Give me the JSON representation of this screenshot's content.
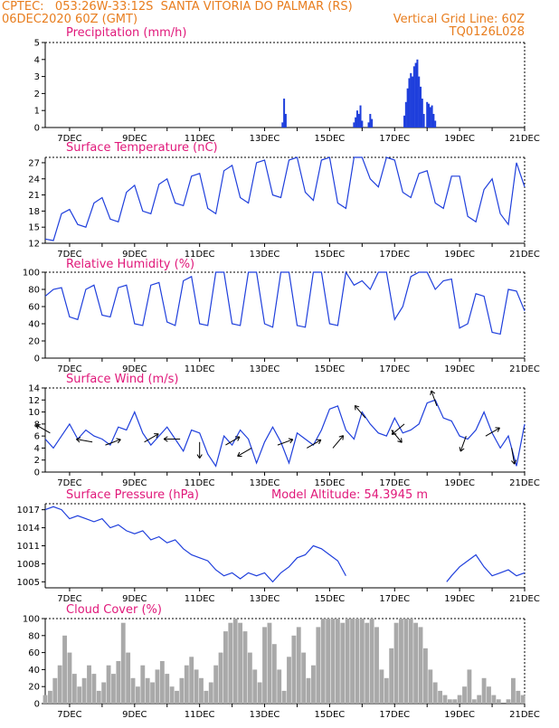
{
  "header": {
    "line1_left": "CPTEC:   053:26W-33:12S  SANTA VITORIA DO PALMAR (RS)",
    "line2_left": "06DEC2020 60Z (GMT)",
    "line2_right": "Vertical Grid Line: 60Z",
    "line3_right": "TQ0126L028"
  },
  "colors": {
    "header": "#e87d1e",
    "panel_title": "#e0187a",
    "series": "#1f3fdc",
    "cloud": "#a9a9a9",
    "axes": "#000000"
  },
  "x_axis": {
    "start_date": "06DEC 06Z",
    "end_date": "21DEC",
    "tick_labels": [
      "7DEC",
      "9DEC",
      "11DEC",
      "13DEC",
      "15DEC",
      "17DEC",
      "19DEC",
      "21DEC"
    ]
  },
  "chart_data": [
    {
      "id": "precip",
      "type": "bar",
      "title": "Precipitation (mm/h)",
      "ylim": [
        0,
        5
      ],
      "yticks": [
        "0",
        "1",
        "2",
        "3",
        "4",
        "5"
      ],
      "x_days": [
        13.55,
        13.6,
        13.65,
        15.75,
        15.8,
        15.85,
        15.9,
        15.95,
        16.0,
        16.2,
        16.25,
        16.3,
        17.3,
        17.35,
        17.4,
        17.45,
        17.5,
        17.55,
        17.6,
        17.65,
        17.7,
        17.75,
        17.8,
        17.85,
        17.9,
        18.0,
        18.05,
        18.1,
        18.15,
        18.2,
        18.25
      ],
      "values": [
        0.3,
        1.7,
        0.8,
        0.3,
        0.6,
        1.0,
        0.8,
        1.3,
        0.4,
        0.3,
        0.8,
        0.5,
        0.7,
        1.5,
        2.3,
        2.9,
        3.2,
        3.0,
        3.6,
        3.8,
        4.0,
        3.0,
        2.4,
        1.7,
        0.8,
        1.5,
        1.4,
        1.2,
        1.3,
        0.8,
        0.4
      ]
    },
    {
      "id": "temp",
      "type": "line",
      "title": "Surface Temperature (nC)",
      "ylim": [
        12,
        28
      ],
      "yticks": [
        "12",
        "15",
        "18",
        "21",
        "24",
        "27"
      ],
      "x_days": [
        6.25,
        6.5,
        6.75,
        7.0,
        7.25,
        7.5,
        7.75,
        8.0,
        8.25,
        8.5,
        8.75,
        9.0,
        9.25,
        9.5,
        9.75,
        10.0,
        10.25,
        10.5,
        10.75,
        11.0,
        11.25,
        11.5,
        11.75,
        12.0,
        12.25,
        12.5,
        12.75,
        13.0,
        13.25,
        13.5,
        13.75,
        14.0,
        14.25,
        14.5,
        14.75,
        15.0,
        15.25,
        15.5,
        15.75,
        16.0,
        16.25,
        16.5,
        16.75,
        17.0,
        17.25,
        17.5,
        17.75,
        18.0,
        18.25,
        18.5,
        18.75,
        19.0,
        19.25,
        19.5,
        19.75,
        20.0,
        20.25,
        20.5,
        20.75,
        21.0
      ],
      "values": [
        12.8,
        12.5,
        17.5,
        18.3,
        15.5,
        15.0,
        19.5,
        20.5,
        16.5,
        16.0,
        21.5,
        22.8,
        18.0,
        17.5,
        23.0,
        24.0,
        19.5,
        19.0,
        24.5,
        25.0,
        18.5,
        17.5,
        25.5,
        26.5,
        20.5,
        19.5,
        27.0,
        27.5,
        21.0,
        20.5,
        27.5,
        28.0,
        21.5,
        20.0,
        27.5,
        28.0,
        19.5,
        18.5,
        28.0,
        28.0,
        24.0,
        22.5,
        28.0,
        27.5,
        21.5,
        20.5,
        25.0,
        25.5,
        19.5,
        18.5,
        24.5,
        24.5,
        17.0,
        16.0,
        22.0,
        24.0,
        17.5,
        15.5,
        27.0,
        22.5
      ]
    },
    {
      "id": "rh",
      "type": "line",
      "title": "Relative Humidity (%)",
      "ylim": [
        0,
        100
      ],
      "yticks": [
        "0",
        "20",
        "40",
        "60",
        "80",
        "100"
      ],
      "x_days": [
        6.25,
        6.5,
        6.75,
        7.0,
        7.25,
        7.5,
        7.75,
        8.0,
        8.25,
        8.5,
        8.75,
        9.0,
        9.25,
        9.5,
        9.75,
        10.0,
        10.25,
        10.5,
        10.75,
        11.0,
        11.25,
        11.5,
        11.75,
        12.0,
        12.25,
        12.5,
        12.75,
        13.0,
        13.25,
        13.5,
        13.75,
        14.0,
        14.25,
        14.5,
        14.75,
        15.0,
        15.25,
        15.5,
        15.75,
        16.0,
        16.25,
        16.5,
        16.75,
        17.0,
        17.25,
        17.5,
        17.75,
        18.0,
        18.25,
        18.5,
        18.75,
        19.0,
        19.25,
        19.5,
        19.75,
        20.0,
        20.25,
        20.5,
        20.75,
        21.0
      ],
      "values": [
        72,
        80,
        82,
        48,
        45,
        80,
        85,
        50,
        48,
        82,
        85,
        40,
        38,
        85,
        88,
        42,
        38,
        90,
        95,
        40,
        38,
        100,
        100,
        40,
        38,
        100,
        100,
        40,
        36,
        100,
        100,
        38,
        36,
        100,
        100,
        40,
        38,
        100,
        85,
        90,
        80,
        100,
        100,
        45,
        60,
        95,
        100,
        100,
        80,
        90,
        92,
        35,
        40,
        75,
        72,
        30,
        28,
        80,
        78,
        55
      ]
    },
    {
      "id": "wind",
      "type": "line",
      "title": "Surface Wind (m/s)",
      "ylim": [
        0,
        14
      ],
      "yticks": [
        "0",
        "2",
        "4",
        "6",
        "8",
        "10",
        "12",
        "14"
      ],
      "x_days": [
        6.25,
        6.5,
        6.75,
        7.0,
        7.25,
        7.5,
        7.75,
        8.0,
        8.25,
        8.5,
        8.75,
        9.0,
        9.25,
        9.5,
        9.75,
        10.0,
        10.25,
        10.5,
        10.75,
        11.0,
        11.25,
        11.5,
        11.75,
        12.0,
        12.25,
        12.5,
        12.75,
        13.0,
        13.25,
        13.5,
        13.75,
        14.0,
        14.25,
        14.5,
        14.75,
        15.0,
        15.25,
        15.5,
        15.75,
        16.0,
        16.25,
        16.5,
        16.75,
        17.0,
        17.25,
        17.5,
        17.75,
        18.0,
        18.25,
        18.5,
        18.75,
        19.0,
        19.25,
        19.5,
        19.75,
        20.0,
        20.25,
        20.5,
        20.75,
        21.0
      ],
      "values": [
        5.5,
        4.0,
        6.0,
        8.0,
        5.5,
        7.0,
        6.0,
        5.5,
        4.5,
        7.5,
        7.0,
        10.0,
        6.5,
        4.5,
        6.0,
        7.5,
        5.5,
        3.5,
        7.0,
        6.5,
        3.0,
        1.0,
        6.0,
        4.5,
        7.0,
        5.5,
        1.5,
        5.0,
        7.5,
        5.0,
        1.5,
        6.5,
        5.5,
        4.5,
        7.0,
        10.5,
        11.0,
        7.0,
        5.5,
        10.0,
        8.0,
        6.5,
        6.0,
        9.0,
        6.5,
        7.0,
        8.0,
        11.5,
        12.0,
        9.0,
        8.5,
        6.0,
        5.5,
        7.0,
        10.0,
        6.5,
        4.0,
        6.0,
        1.0,
        8.0
      ],
      "arrows": [
        {
          "x_day": 6.4,
          "y": 6.5,
          "dir_deg": 300
        },
        {
          "x_day": 7.7,
          "y": 5.0,
          "dir_deg": 280
        },
        {
          "x_day": 8.1,
          "y": 4.5,
          "dir_deg": 70
        },
        {
          "x_day": 9.3,
          "y": 5.0,
          "dir_deg": 60
        },
        {
          "x_day": 10.4,
          "y": 5.5,
          "dir_deg": 270
        },
        {
          "x_day": 11.0,
          "y": 5.0,
          "dir_deg": 180
        },
        {
          "x_day": 11.8,
          "y": 4.5,
          "dir_deg": 60
        },
        {
          "x_day": 12.6,
          "y": 4.0,
          "dir_deg": 240
        },
        {
          "x_day": 13.4,
          "y": 4.5,
          "dir_deg": 70
        },
        {
          "x_day": 14.3,
          "y": 4.0,
          "dir_deg": 60
        },
        {
          "x_day": 15.1,
          "y": 4.0,
          "dir_deg": 40
        },
        {
          "x_day": 16.1,
          "y": 9.0,
          "dir_deg": 320
        },
        {
          "x_day": 16.9,
          "y": 7.0,
          "dir_deg": 140
        },
        {
          "x_day": 17.3,
          "y": 8.0,
          "dir_deg": 230
        },
        {
          "x_day": 18.3,
          "y": 11.0,
          "dir_deg": 340
        },
        {
          "x_day": 19.2,
          "y": 6.0,
          "dir_deg": 200
        },
        {
          "x_day": 19.8,
          "y": 6.0,
          "dir_deg": 60
        },
        {
          "x_day": 20.6,
          "y": 4.0,
          "dir_deg": 170
        }
      ]
    },
    {
      "id": "pressure",
      "type": "line",
      "title": "Surface Pressure (hPa)",
      "annotation": "Model Altitude: 54.3945 m",
      "ylim": [
        1004,
        1018
      ],
      "yticks": [
        "1005",
        "1008",
        "1011",
        "1014",
        "1017"
      ],
      "x_days": [
        6.25,
        6.5,
        6.75,
        7.0,
        7.25,
        7.5,
        7.75,
        8.0,
        8.25,
        8.5,
        8.75,
        9.0,
        9.25,
        9.5,
        9.75,
        10.0,
        10.25,
        10.5,
        10.75,
        11.0,
        11.25,
        11.5,
        11.75,
        12.0,
        12.25,
        12.5,
        12.75,
        13.0,
        13.25,
        13.5,
        13.75,
        14.0,
        14.25,
        14.5,
        14.75,
        15.0,
        15.25,
        15.5,
        null,
        18.6,
        18.75,
        19.0,
        19.25,
        19.5,
        19.75,
        20.0,
        20.25,
        20.5,
        20.75,
        21.0
      ],
      "values": [
        1017.0,
        1017.5,
        1017.0,
        1015.5,
        1016.0,
        1015.5,
        1015.0,
        1015.5,
        1014.0,
        1014.5,
        1013.5,
        1013.0,
        1013.5,
        1012.0,
        1012.5,
        1011.5,
        1012.0,
        1010.5,
        1009.5,
        1009.0,
        1008.5,
        1007.0,
        1006.0,
        1006.5,
        1005.5,
        1006.5,
        1006.0,
        1006.5,
        1005.0,
        1006.5,
        1007.5,
        1009.0,
        1009.5,
        1011.0,
        1010.5,
        1009.5,
        1008.5,
        1006.0,
        null,
        1005.0,
        1006.0,
        1007.5,
        1008.5,
        1009.5,
        1007.5,
        1006.0,
        1006.5,
        1007.0,
        1006.0,
        1006.5
      ]
    },
    {
      "id": "cloud",
      "type": "bar",
      "title": "Cloud Cover (%)",
      "ylim": [
        0,
        100
      ],
      "yticks": [
        "0",
        "20",
        "40",
        "60",
        "80",
        "100"
      ],
      "x_days": [
        6.25,
        6.4,
        6.55,
        6.7,
        6.85,
        7.0,
        7.15,
        7.3,
        7.45,
        7.6,
        7.75,
        7.9,
        8.05,
        8.2,
        8.35,
        8.5,
        8.65,
        8.8,
        8.95,
        9.1,
        9.25,
        9.4,
        9.55,
        9.7,
        9.85,
        10.0,
        10.15,
        10.3,
        10.45,
        10.6,
        10.75,
        10.9,
        11.05,
        11.2,
        11.35,
        11.5,
        11.65,
        11.8,
        11.95,
        12.1,
        12.25,
        12.4,
        12.55,
        12.7,
        12.85,
        13.0,
        13.15,
        13.3,
        13.45,
        13.6,
        13.75,
        13.9,
        14.05,
        14.2,
        14.35,
        14.5,
        14.65,
        14.8,
        14.95,
        15.1,
        15.25,
        15.4,
        15.55,
        15.7,
        15.85,
        16.0,
        16.15,
        16.3,
        16.45,
        16.6,
        16.75,
        16.9,
        17.05,
        17.2,
        17.35,
        17.5,
        17.65,
        17.8,
        17.95,
        18.1,
        18.25,
        18.4,
        18.55,
        18.7,
        18.85,
        19.0,
        19.15,
        19.3,
        19.45,
        19.6,
        19.75,
        19.9,
        20.05,
        20.2,
        20.35,
        20.5,
        20.65,
        20.8,
        20.95
      ],
      "values": [
        10,
        15,
        30,
        45,
        80,
        60,
        35,
        20,
        30,
        45,
        35,
        15,
        25,
        45,
        35,
        50,
        95,
        60,
        30,
        20,
        45,
        30,
        25,
        40,
        50,
        35,
        20,
        15,
        30,
        45,
        55,
        40,
        30,
        15,
        25,
        45,
        60,
        85,
        95,
        100,
        95,
        85,
        60,
        40,
        25,
        90,
        95,
        70,
        40,
        15,
        55,
        80,
        90,
        60,
        30,
        45,
        90,
        100,
        100,
        100,
        100,
        95,
        100,
        100,
        100,
        100,
        95,
        100,
        90,
        40,
        30,
        65,
        95,
        100,
        100,
        100,
        95,
        90,
        65,
        40,
        25,
        15,
        10,
        5,
        5,
        10,
        20,
        40,
        5,
        10,
        30,
        20,
        10,
        5,
        0,
        5,
        30,
        15,
        10
      ]
    }
  ]
}
